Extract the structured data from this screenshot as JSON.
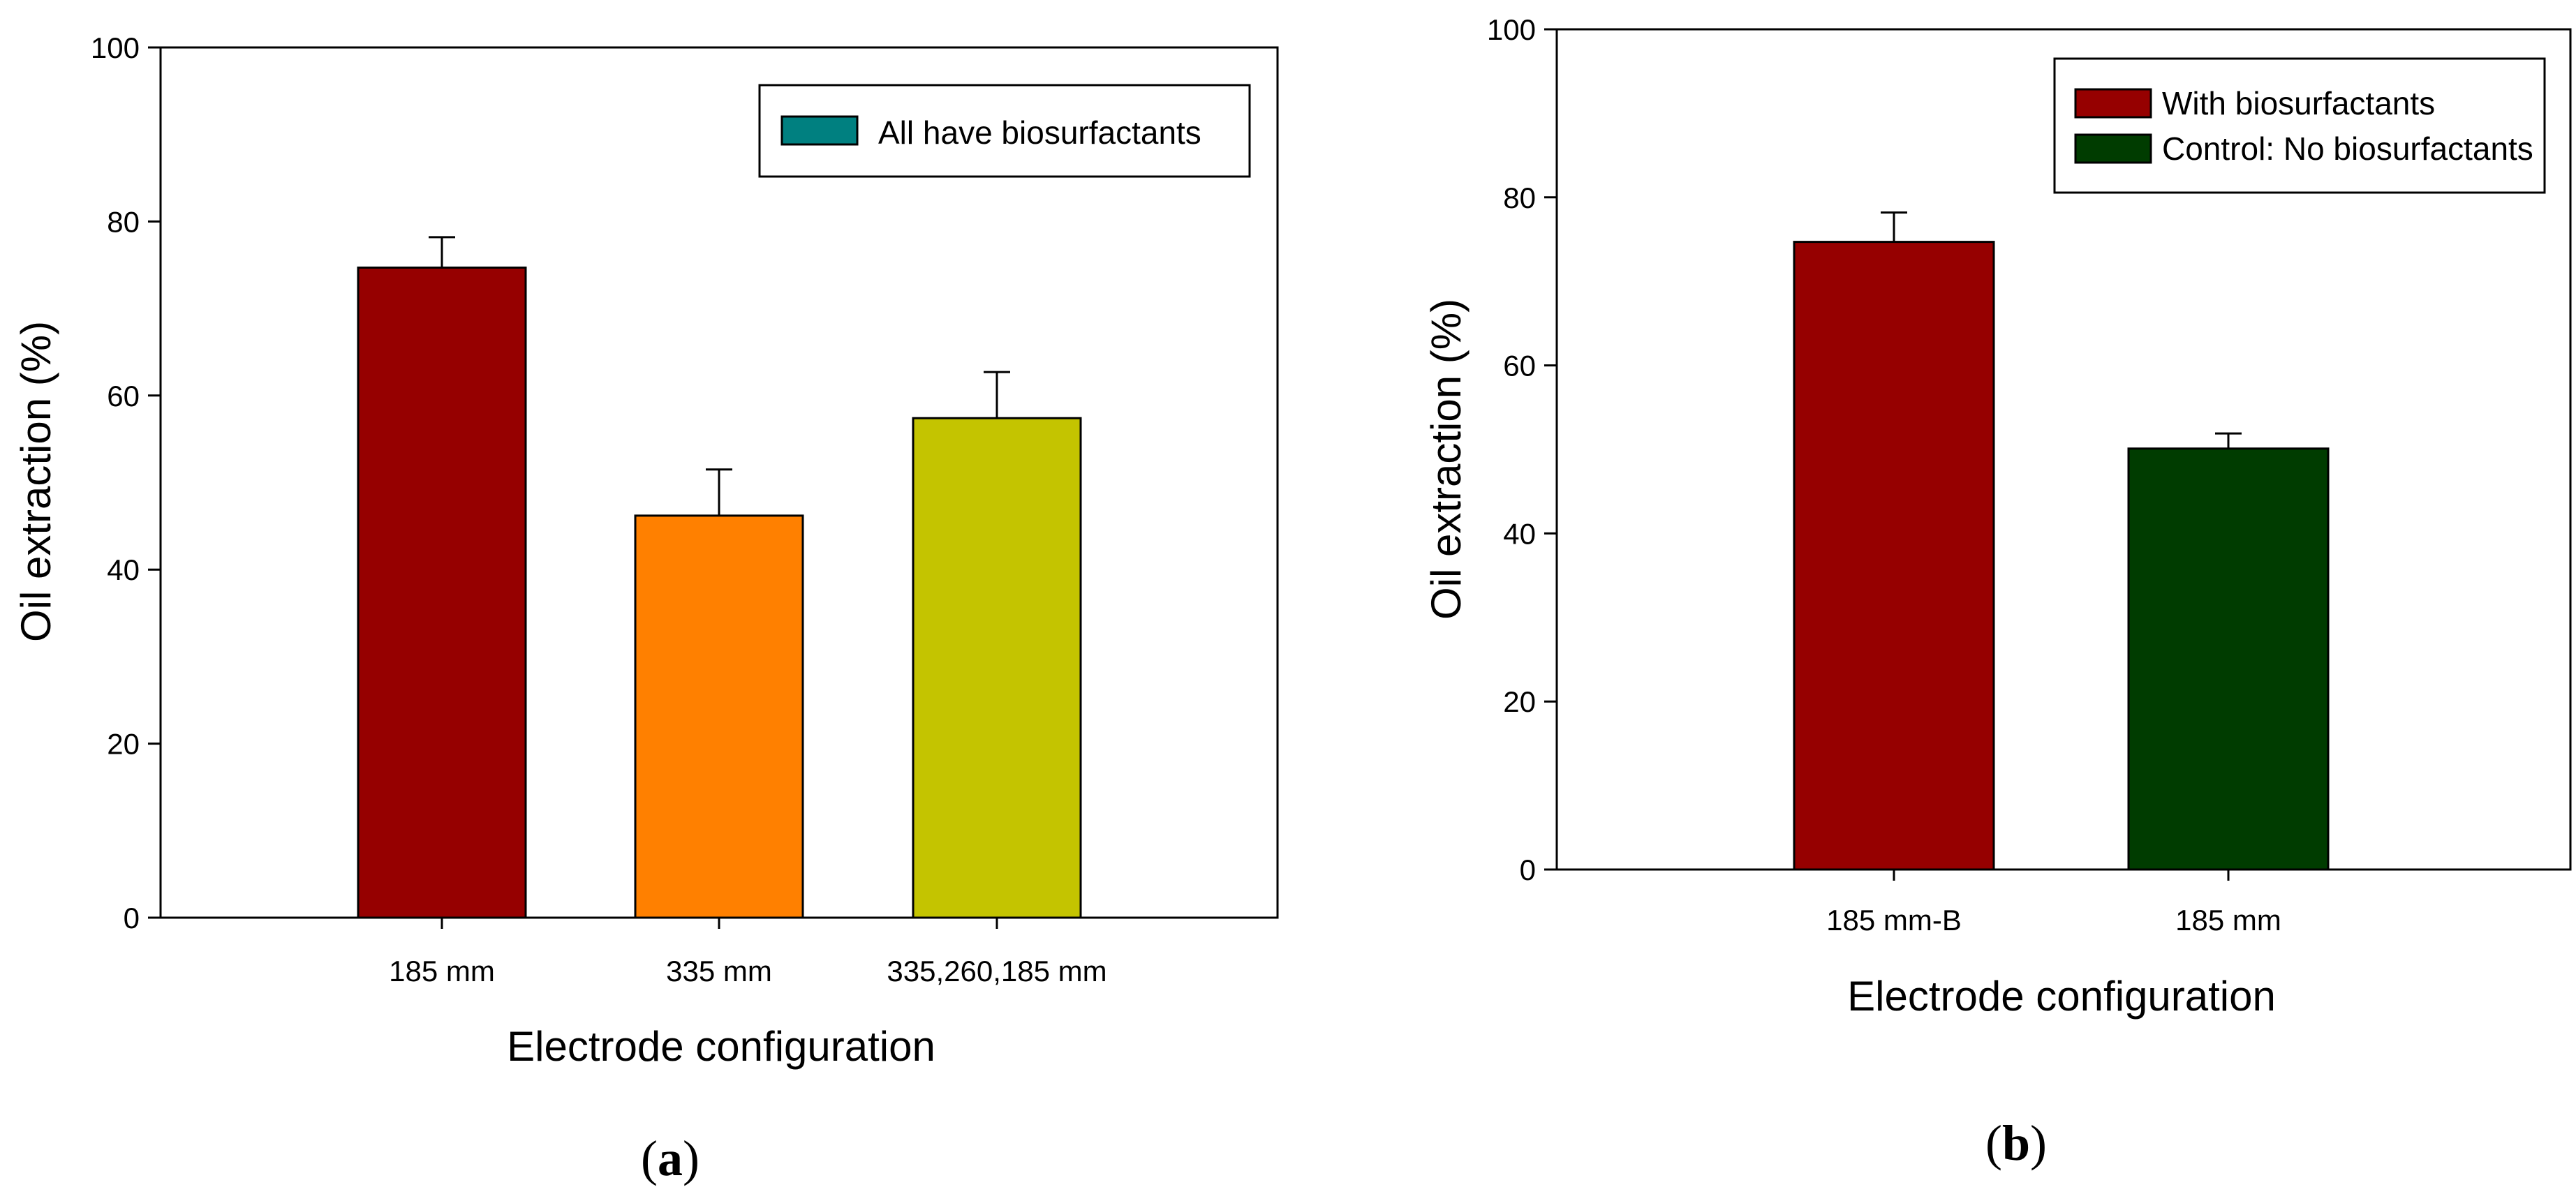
{
  "chart_data": [
    {
      "panel": "a",
      "panel_label": "a",
      "type": "bar",
      "categories": [
        "185 mm",
        "335 mm",
        "335,260,185 mm"
      ],
      "values": [
        74.7,
        46.2,
        57.4
      ],
      "errors": [
        3.5,
        5.3,
        5.3
      ],
      "colors": [
        "#960000",
        "#ff8000",
        "#c4c400"
      ],
      "xlabel": "Electrode configuration",
      "ylabel": "Oil extraction (%)",
      "ylim": [
        0,
        100
      ],
      "yticks": [
        "0",
        "20",
        "40",
        "60",
        "80",
        "100"
      ],
      "legend": {
        "placement": "top-right",
        "entries": [
          {
            "label": "All have biosurfactants",
            "color": "#008080"
          }
        ]
      }
    },
    {
      "panel": "b",
      "panel_label": "b",
      "type": "bar",
      "categories": [
        "185 mm-B",
        "185 mm"
      ],
      "values": [
        74.7,
        50.1
      ],
      "errors": [
        3.5,
        1.8
      ],
      "colors": [
        "#960000",
        "#003c00"
      ],
      "xlabel": "Electrode configuration",
      "ylabel": "Oil extraction (%)",
      "ylim": [
        0,
        100
      ],
      "yticks": [
        "0",
        "20",
        "40",
        "60",
        "80",
        "100"
      ],
      "legend": {
        "placement": "top-right",
        "entries": [
          {
            "label": "With biosurfactants",
            "color": "#960000"
          },
          {
            "label": "Control: No biosurfactants",
            "color": "#003c00"
          }
        ]
      }
    }
  ]
}
